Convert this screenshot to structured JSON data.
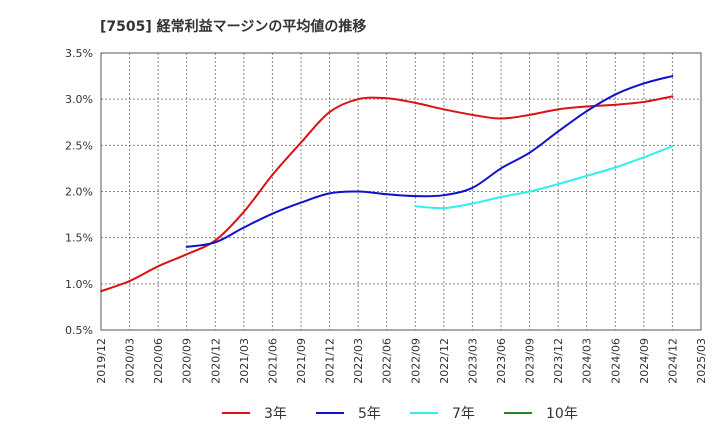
{
  "chart_data": {
    "type": "line",
    "title": "[7505]  経常利益マージンの平均値の推移",
    "ylim": [
      0.5,
      3.5
    ],
    "y_ticks": [
      "0.5%",
      "1.0%",
      "1.5%",
      "2.0%",
      "2.5%",
      "3.0%",
      "3.5%"
    ],
    "x_ticks": [
      "2019/12",
      "2020/03",
      "2020/06",
      "2020/09",
      "2020/12",
      "2021/03",
      "2021/06",
      "2021/09",
      "2021/12",
      "2022/03",
      "2022/06",
      "2022/09",
      "2022/12",
      "2023/03",
      "2023/06",
      "2023/09",
      "2023/12",
      "2024/03",
      "2024/06",
      "2024/09",
      "2024/12",
      "2025/03"
    ],
    "grid": true,
    "legend_position": "bottom",
    "series": [
      {
        "name": "3年",
        "color": "#dd1111",
        "x": [
          "2019/12",
          "2020/03",
          "2020/06",
          "2020/09",
          "2020/12",
          "2021/03",
          "2021/06",
          "2021/09",
          "2021/12",
          "2022/03",
          "2022/06",
          "2022/09",
          "2022/12",
          "2023/03",
          "2023/06",
          "2023/09",
          "2023/12",
          "2024/03",
          "2024/06",
          "2024/09",
          "2024/12"
        ],
        "values": [
          0.92,
          1.03,
          1.19,
          1.32,
          1.47,
          1.78,
          2.18,
          2.53,
          2.86,
          3.0,
          3.01,
          2.96,
          2.89,
          2.83,
          2.79,
          2.83,
          2.89,
          2.92,
          2.94,
          2.97,
          3.03
        ]
      },
      {
        "name": "5年",
        "color": "#1111cc",
        "x": [
          "2020/09",
          "2020/12",
          "2021/03",
          "2021/06",
          "2021/09",
          "2021/12",
          "2022/03",
          "2022/06",
          "2022/09",
          "2022/12",
          "2023/03",
          "2023/06",
          "2023/09",
          "2023/12",
          "2024/03",
          "2024/06",
          "2024/09",
          "2024/12"
        ],
        "values": [
          1.4,
          1.45,
          1.61,
          1.76,
          1.88,
          1.98,
          2.0,
          1.97,
          1.95,
          1.96,
          2.04,
          2.25,
          2.42,
          2.65,
          2.87,
          3.05,
          3.17,
          3.25
        ]
      },
      {
        "name": "7年",
        "color": "#33eeee",
        "x": [
          "2022/09",
          "2022/12",
          "2023/03",
          "2023/06",
          "2023/09",
          "2023/12",
          "2024/03",
          "2024/06",
          "2024/09",
          "2024/12"
        ],
        "values": [
          1.84,
          1.82,
          1.87,
          1.94,
          2.0,
          2.08,
          2.17,
          2.26,
          2.37,
          2.49
        ]
      },
      {
        "name": "10年",
        "color": "#228822",
        "x": [],
        "values": []
      }
    ]
  }
}
